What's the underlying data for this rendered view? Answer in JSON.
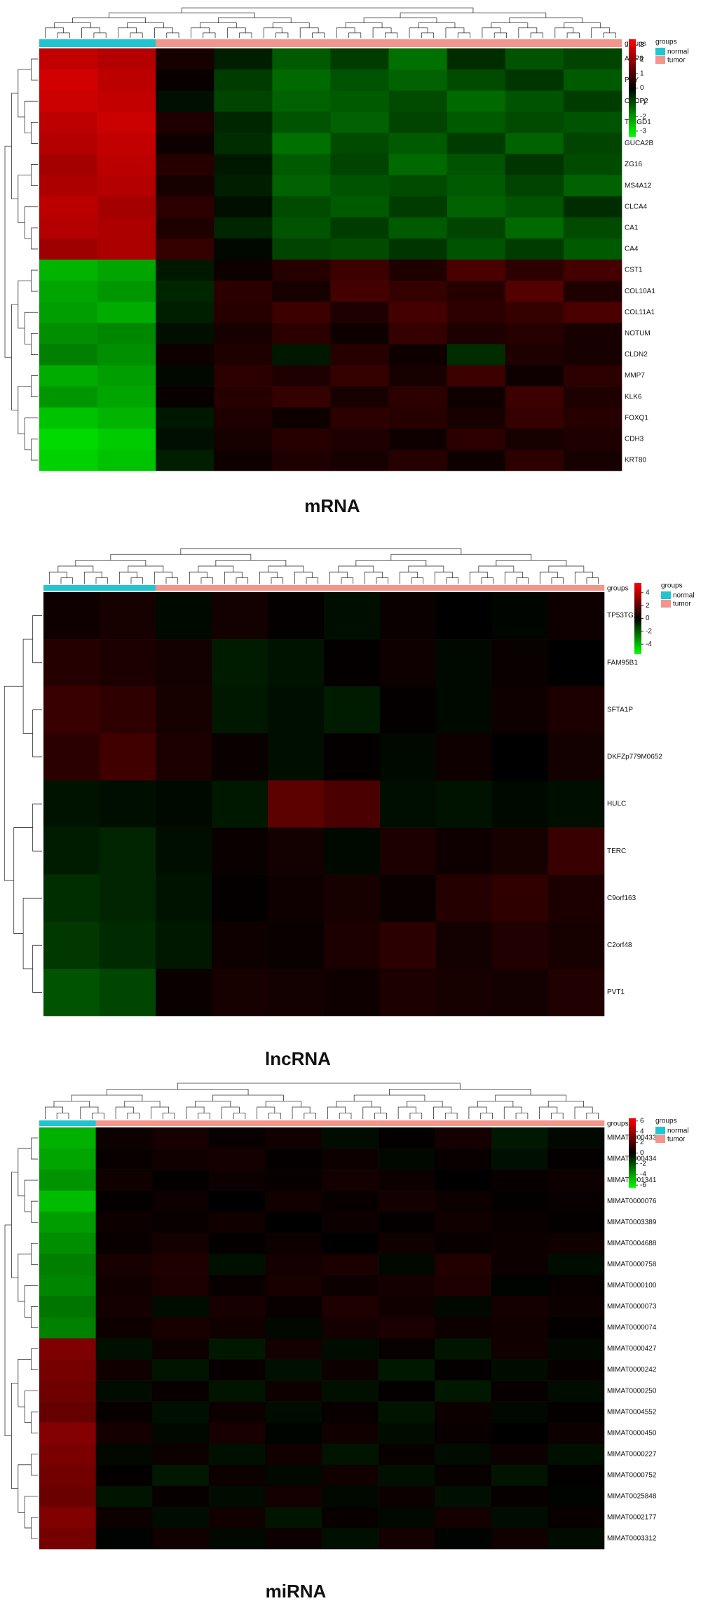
{
  "chart_data": [
    {
      "type": "heatmap",
      "title": "mRNA",
      "annotation_label": "groups",
      "legend": {
        "title": "groups",
        "names": [
          "normal",
          "tumor"
        ],
        "colors": [
          "#21c4cf",
          "#f4958c"
        ]
      },
      "colorbar": {
        "lim": [
          -3.4,
          3.4
        ],
        "ticks": [
          3,
          2,
          1,
          0,
          -1,
          -2,
          -3
        ],
        "colors": [
          "#00ff00",
          "#000000",
          "#ff0000"
        ]
      },
      "column_groups": [
        "normal",
        "normal",
        "tumor",
        "tumor",
        "tumor",
        "tumor",
        "tumor",
        "tumor",
        "tumor",
        "tumor"
      ],
      "rows": [
        "AQP8",
        "PYY",
        "OTOP2",
        "TMIGD1",
        "GUCA2B",
        "ZG16",
        "MS4A12",
        "CLCA4",
        "CA1",
        "CA4",
        "CST1",
        "COL10A1",
        "COL11A1",
        "NOTUM",
        "CLDN2",
        "MMP7",
        "KLK6",
        "FOXQ1",
        "CDH3",
        "KRT80"
      ],
      "values": [
        [
          2.6,
          2.4,
          0.3,
          -0.4,
          -1.2,
          -0.8,
          -1.5,
          -0.6,
          -1.1,
          -0.9
        ],
        [
          2.8,
          2.5,
          0.1,
          -0.8,
          -1.4,
          -1.1,
          -1.3,
          -1.0,
          -0.7,
          -1.2
        ],
        [
          2.7,
          2.6,
          -0.2,
          -0.9,
          -1.3,
          -1.2,
          -1.0,
          -1.4,
          -1.1,
          -0.8
        ],
        [
          2.5,
          2.7,
          0.4,
          -0.5,
          -1.1,
          -1.3,
          -0.9,
          -1.2,
          -1.0,
          -1.1
        ],
        [
          2.4,
          2.6,
          0.2,
          -0.6,
          -1.5,
          -1.0,
          -1.2,
          -0.8,
          -1.3,
          -0.9
        ],
        [
          2.2,
          2.5,
          0.5,
          -0.3,
          -1.2,
          -0.9,
          -1.4,
          -1.1,
          -0.7,
          -1.0
        ],
        [
          2.3,
          2.4,
          0.3,
          -0.4,
          -1.3,
          -1.1,
          -1.0,
          -1.2,
          -0.9,
          -1.3
        ],
        [
          2.5,
          2.2,
          0.6,
          -0.2,
          -1.0,
          -1.2,
          -0.8,
          -1.3,
          -1.1,
          -0.6
        ],
        [
          2.4,
          2.3,
          0.4,
          -0.5,
          -1.1,
          -0.8,
          -1.2,
          -0.9,
          -1.4,
          -1.0
        ],
        [
          2.1,
          2.3,
          0.7,
          -0.1,
          -0.9,
          -1.0,
          -0.7,
          -1.1,
          -0.8,
          -1.2
        ],
        [
          -2.4,
          -2.2,
          -0.3,
          0.2,
          0.5,
          0.8,
          0.4,
          1.0,
          0.6,
          0.9
        ],
        [
          -2.2,
          -2.0,
          -0.5,
          0.6,
          0.3,
          0.9,
          0.7,
          0.5,
          1.1,
          0.4
        ],
        [
          -2.1,
          -2.3,
          -0.4,
          0.5,
          0.8,
          0.4,
          0.9,
          0.6,
          0.7,
          1.0
        ],
        [
          -1.9,
          -1.8,
          -0.2,
          0.3,
          0.6,
          0.2,
          0.7,
          0.4,
          0.5,
          0.3
        ],
        [
          -1.7,
          -1.9,
          0.2,
          0.4,
          -0.3,
          0.5,
          0.2,
          -0.6,
          0.4,
          0.3
        ],
        [
          -2.3,
          -2.1,
          -0.1,
          0.6,
          0.4,
          0.7,
          0.3,
          0.8,
          0.2,
          0.6
        ],
        [
          -2.0,
          -2.2,
          0.1,
          0.5,
          0.7,
          0.3,
          0.6,
          0.2,
          0.8,
          0.4
        ],
        [
          -2.6,
          -2.4,
          -0.3,
          0.4,
          0.2,
          0.6,
          0.5,
          0.3,
          0.7,
          0.5
        ],
        [
          -2.9,
          -2.7,
          -0.2,
          0.3,
          0.5,
          0.4,
          0.2,
          0.6,
          0.3,
          0.4
        ],
        [
          -2.8,
          -2.6,
          -0.4,
          0.2,
          0.4,
          0.3,
          0.5,
          0.2,
          0.6,
          0.3
        ]
      ]
    },
    {
      "type": "heatmap",
      "title": "lncRNA",
      "annotation_label": "groups",
      "legend": {
        "title": "groups",
        "names": [
          "normal",
          "tumor"
        ],
        "colors": [
          "#21c4cf",
          "#f4958c"
        ]
      },
      "colorbar": {
        "lim": [
          -5.5,
          5.5
        ],
        "ticks": [
          4,
          2,
          0,
          -2,
          -4
        ],
        "colors": [
          "#00ff00",
          "#000000",
          "#ff0000"
        ]
      },
      "column_groups": [
        "normal",
        "normal",
        "tumor",
        "tumor",
        "tumor",
        "tumor",
        "tumor",
        "tumor",
        "tumor",
        "tumor"
      ],
      "rows": [
        "TP53TG1",
        "FAM95B1",
        "SFTA1P",
        "DKFZp779M0652",
        "HULC",
        "TERC",
        "C9orf163",
        "C2orf48",
        "PVT1"
      ],
      "values": [
        [
          0.3,
          0.5,
          -0.2,
          0.4,
          0.1,
          -0.3,
          0.2,
          0.0,
          -0.1,
          0.3
        ],
        [
          0.8,
          0.6,
          0.4,
          -0.6,
          -0.4,
          0.1,
          0.3,
          -0.2,
          0.2,
          0.0
        ],
        [
          1.2,
          1.0,
          0.5,
          -0.5,
          -0.3,
          -0.6,
          0.1,
          -0.2,
          0.3,
          0.6
        ],
        [
          0.9,
          1.4,
          0.6,
          0.2,
          -0.3,
          0.1,
          -0.2,
          0.3,
          0.0,
          0.4
        ],
        [
          -0.4,
          -0.3,
          -0.2,
          -0.5,
          2.0,
          1.6,
          -0.3,
          -0.4,
          -0.2,
          -0.3
        ],
        [
          -0.6,
          -0.8,
          -0.3,
          0.2,
          0.4,
          -0.2,
          0.6,
          0.3,
          0.5,
          1.2
        ],
        [
          -1.0,
          -0.8,
          -0.4,
          0.1,
          0.3,
          0.5,
          0.2,
          0.8,
          1.0,
          0.6
        ],
        [
          -1.2,
          -0.9,
          -0.5,
          0.3,
          0.2,
          0.6,
          0.9,
          0.4,
          0.7,
          0.5
        ],
        [
          -1.8,
          -1.5,
          0.2,
          0.5,
          0.4,
          0.3,
          0.6,
          0.5,
          0.4,
          0.7
        ]
      ]
    },
    {
      "type": "heatmap",
      "title": "miRNA",
      "annotation_label": "groups",
      "legend": {
        "title": "groups",
        "names": [
          "normal",
          "tumor"
        ],
        "colors": [
          "#21c4cf",
          "#f4958c"
        ]
      },
      "colorbar": {
        "lim": [
          -6.5,
          6.5
        ],
        "ticks": [
          6,
          4,
          2,
          0,
          -2,
          -4,
          -6
        ],
        "colors": [
          "#00ff00",
          "#000000",
          "#ff0000"
        ]
      },
      "column_groups": [
        "normal",
        "tumor",
        "tumor",
        "tumor",
        "tumor",
        "tumor",
        "tumor",
        "tumor",
        "tumor",
        "tumor"
      ],
      "rows": [
        "MIMAT0000433",
        "MIMAT0000434",
        "MIMAT0001341",
        "MIMAT0000076",
        "MIMAT0003389",
        "MIMAT0004688",
        "MIMAT0000758",
        "MIMAT0000100",
        "MIMAT0000073",
        "MIMAT0000074",
        "MIMAT0000427",
        "MIMAT0000242",
        "MIMAT0000250",
        "MIMAT0004552",
        "MIMAT0000450",
        "MIMAT0000227",
        "MIMAT0000752",
        "MIMAT0025848",
        "MIMAT0002177",
        "MIMAT0003312"
      ],
      "values": [
        [
          -4.5,
          0.3,
          0.6,
          0.2,
          0.4,
          -0.3,
          0.1,
          0.5,
          -0.6,
          -0.2
        ],
        [
          -4.2,
          0.2,
          0.4,
          0.5,
          0.1,
          0.3,
          -0.2,
          0.2,
          -0.4,
          0.1
        ],
        [
          -3.8,
          0.4,
          0.1,
          0.3,
          0.2,
          0.5,
          0.3,
          0.0,
          0.2,
          0.3
        ],
        [
          -4.8,
          0.1,
          0.3,
          0.0,
          0.4,
          0.2,
          0.5,
          0.3,
          0.1,
          0.2
        ],
        [
          -4.0,
          0.3,
          0.2,
          0.4,
          0.0,
          0.3,
          0.1,
          0.4,
          0.2,
          0.1
        ],
        [
          -3.6,
          0.2,
          0.5,
          0.1,
          0.3,
          0.0,
          0.4,
          0.2,
          0.3,
          0.4
        ],
        [
          -3.2,
          0.6,
          0.8,
          -0.4,
          0.5,
          0.7,
          -0.2,
          0.9,
          0.3,
          -0.3
        ],
        [
          -3.4,
          0.4,
          0.7,
          0.2,
          0.6,
          0.3,
          0.5,
          0.8,
          -0.1,
          0.2
        ],
        [
          -3.0,
          0.5,
          -0.3,
          0.6,
          0.2,
          0.8,
          0.4,
          -0.2,
          0.5,
          0.3
        ],
        [
          -3.3,
          0.3,
          0.6,
          0.4,
          -0.2,
          0.5,
          0.7,
          0.3,
          0.4,
          0.1
        ],
        [
          3.2,
          -0.4,
          0.3,
          -0.6,
          0.5,
          -0.3,
          0.2,
          -0.5,
          0.4,
          -0.2
        ],
        [
          3.0,
          0.4,
          -0.5,
          0.2,
          -0.4,
          0.3,
          -0.6,
          0.1,
          -0.3,
          0.2
        ],
        [
          2.8,
          -0.3,
          0.2,
          -0.5,
          0.3,
          -0.4,
          0.1,
          -0.6,
          0.2,
          -0.3
        ],
        [
          2.6,
          0.2,
          -0.4,
          0.3,
          -0.3,
          0.2,
          -0.5,
          0.3,
          -0.2,
          0.1
        ],
        [
          3.4,
          0.5,
          -0.2,
          0.6,
          -0.1,
          0.4,
          -0.3,
          0.2,
          0.0,
          0.3
        ],
        [
          3.1,
          -0.2,
          0.3,
          -0.4,
          0.4,
          -0.5,
          0.2,
          -0.3,
          0.3,
          -0.4
        ],
        [
          2.9,
          0.1,
          -0.6,
          0.3,
          -0.2,
          0.4,
          -0.4,
          0.2,
          -0.5,
          0.1
        ],
        [
          2.7,
          -0.5,
          0.2,
          -0.3,
          0.5,
          -0.2,
          0.3,
          -0.4,
          0.2,
          -0.1
        ],
        [
          3.3,
          0.3,
          -0.3,
          0.4,
          -0.5,
          0.2,
          -0.2,
          0.5,
          -0.3,
          0.2
        ],
        [
          3.0,
          -0.1,
          0.4,
          -0.2,
          0.3,
          -0.4,
          0.5,
          -0.1,
          0.4,
          -0.3
        ]
      ]
    }
  ]
}
